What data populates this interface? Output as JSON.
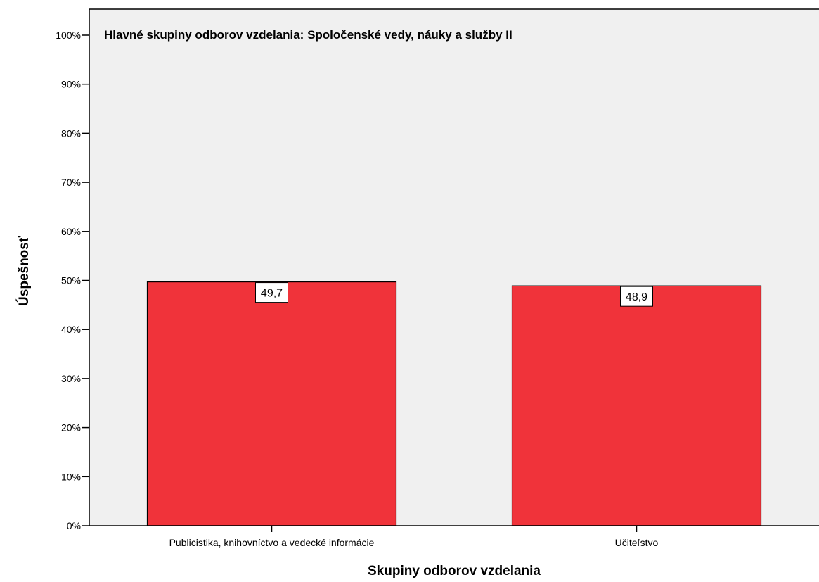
{
  "chart_data": {
    "type": "bar",
    "title": "Hlavné skupiny odborov vzdelania: Spoločenské vedy, náuky a služby II",
    "xlabel": "Skupiny odborov vzdelania",
    "ylabel": "Úspešnosť",
    "categories": [
      "Publicistika, knihovníctvo a vedecké informácie",
      "Učiteľstvo"
    ],
    "values": [
      49.7,
      48.9
    ],
    "data_labels": [
      "49,7",
      "48,9"
    ],
    "ylim": [
      0,
      100
    ],
    "yticks": [
      0,
      10,
      20,
      30,
      40,
      50,
      60,
      70,
      80,
      90,
      100
    ],
    "ytick_labels": [
      "0%",
      "10%",
      "20%",
      "30%",
      "40%",
      "50%",
      "60%",
      "70%",
      "80%",
      "90%",
      "100%"
    ],
    "grid": false,
    "legend": "none",
    "colors": {
      "bar": "#f0333a",
      "plot_background": "#f0f0f0",
      "border": "#000000"
    }
  }
}
